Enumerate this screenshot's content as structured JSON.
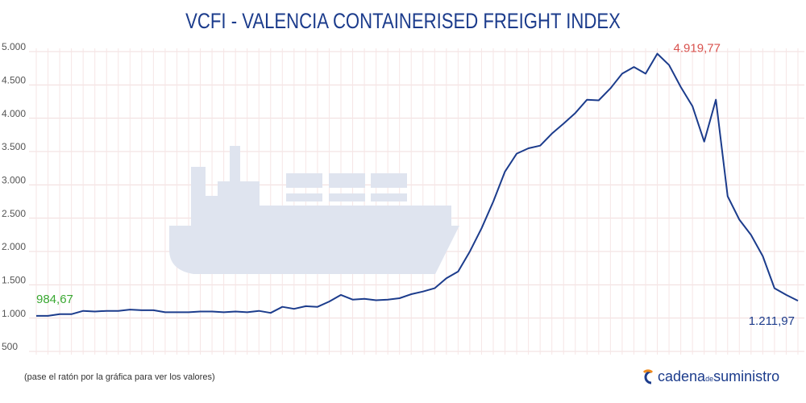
{
  "chart_data": {
    "type": "line",
    "title": "VCFI - VALENCIA CONTAINERISED FREIGHT INDEX",
    "series": [
      {
        "name": "VCFI",
        "color": "#1c3c8c",
        "values": [
          984.67,
          985,
          1010,
          1010,
          1060,
          1050,
          1060,
          1060,
          1080,
          1070,
          1070,
          1040,
          1040,
          1040,
          1050,
          1050,
          1040,
          1050,
          1040,
          1060,
          1030,
          1120,
          1090,
          1130,
          1120,
          1200,
          1300,
          1230,
          1240,
          1220,
          1230,
          1250,
          1310,
          1350,
          1400,
          1550,
          1650,
          1950,
          2300,
          2700,
          3150,
          3420,
          3500,
          3540,
          3720,
          3870,
          4030,
          4230,
          4220,
          4400,
          4620,
          4720,
          4620,
          4919.77,
          4750,
          4420,
          4130,
          3600,
          4230,
          2780,
          2430,
          2200,
          1880,
          1400,
          1300,
          1211.97
        ],
        "value_labels": [
          "984,67",
          null,
          null,
          null,
          null,
          null,
          null,
          null,
          null,
          null,
          null,
          null,
          null,
          null,
          null,
          null,
          null,
          null,
          null,
          null,
          null,
          null,
          null,
          null,
          null,
          null,
          null,
          null,
          null,
          null,
          null,
          null,
          null,
          null,
          null,
          null,
          null,
          null,
          null,
          null,
          null,
          null,
          null,
          null,
          null,
          null,
          null,
          null,
          null,
          null,
          null,
          null,
          null,
          "4.919,77",
          null,
          null,
          null,
          null,
          null,
          null,
          null,
          null,
          null,
          null,
          null,
          "1.211,97"
        ]
      }
    ],
    "ylim": [
      500,
      5000
    ],
    "yticks": [
      {
        "value": 5000,
        "label": "5.000"
      },
      {
        "value": 4500,
        "label": "4.500"
      },
      {
        "value": 4000,
        "label": "4.000"
      },
      {
        "value": 3500,
        "label": "3.500"
      },
      {
        "value": 3000,
        "label": "3.000"
      },
      {
        "value": 2500,
        "label": "2.500"
      },
      {
        "value": 2000,
        "label": "2.000"
      },
      {
        "value": 1500,
        "label": "1.500"
      },
      {
        "value": 1000,
        "label": "1.000"
      },
      500
    ],
    "grid": true,
    "footnote": "(pase el ratón por la gráfica para ver los valores)",
    "logo": [
      "cadena",
      "de",
      "suministro"
    ]
  }
}
